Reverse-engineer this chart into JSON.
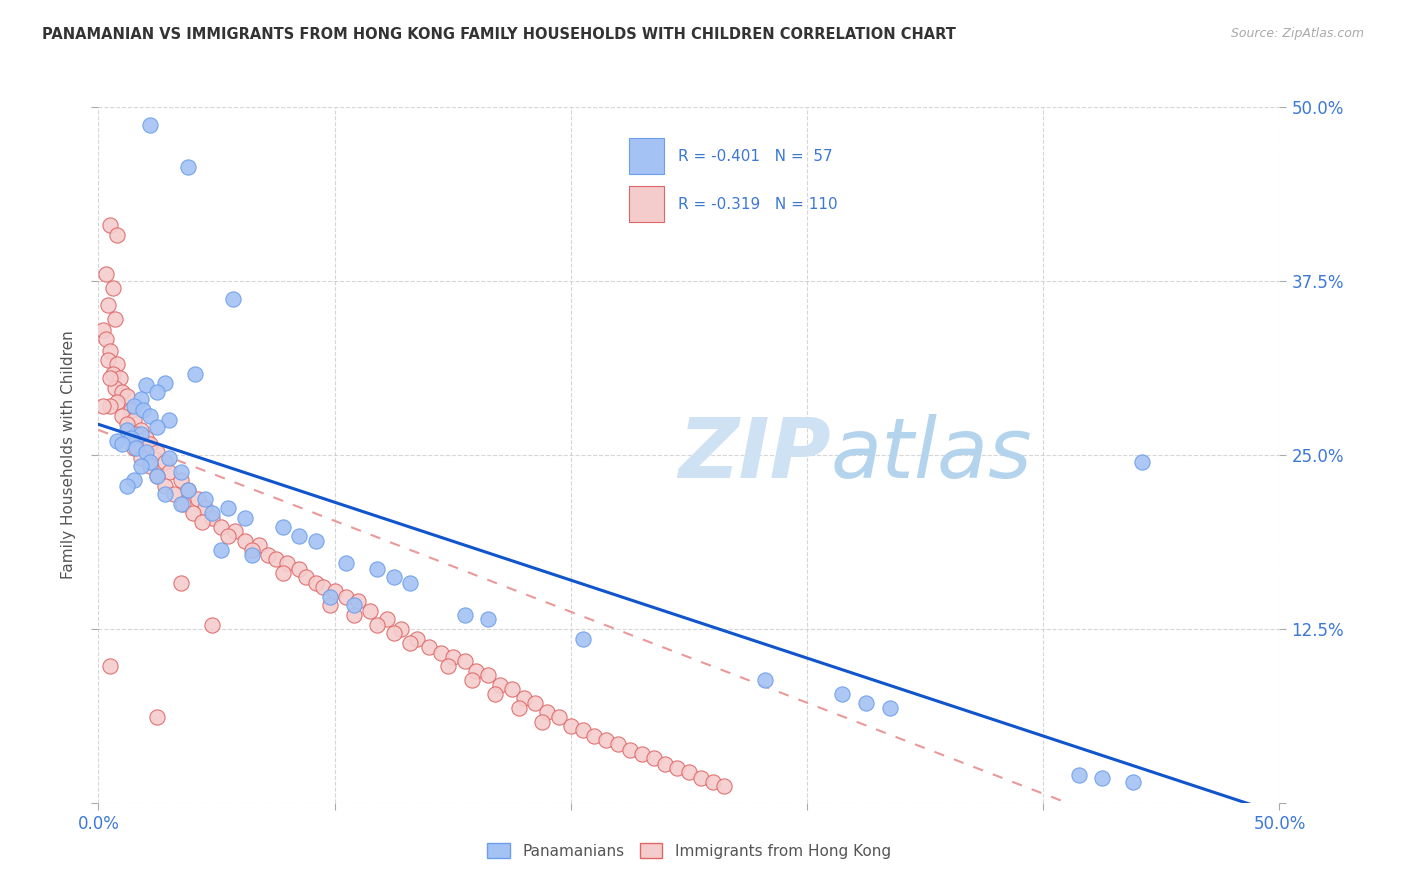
{
  "title": "PANAMANIAN VS IMMIGRANTS FROM HONG KONG FAMILY HOUSEHOLDS WITH CHILDREN CORRELATION CHART",
  "source": "Source: ZipAtlas.com",
  "ylabel": "Family Households with Children",
  "xlim": [
    0.0,
    0.5
  ],
  "ylim": [
    0.0,
    0.5
  ],
  "color_blue_fill": "#a4c2f4",
  "color_blue_edge": "#6d9eeb",
  "color_pink_fill": "#f4cccc",
  "color_pink_edge": "#e06666",
  "color_line_blue": "#1155cc",
  "color_line_pink": "#ea9999",
  "watermark_zip_color": "#c9daf8",
  "watermark_atlas_color": "#b7d0f7",
  "legend_label_1": "Panamanians",
  "legend_label_2": "Immigrants from Hong Kong",
  "blue_line_x": [
    0.0,
    0.5
  ],
  "blue_line_y": [
    0.272,
    -0.008
  ],
  "pink_line_x": [
    0.0,
    0.41
  ],
  "pink_line_y": [
    0.268,
    0.0
  ],
  "blue_scatter": [
    [
      0.022,
      0.487
    ],
    [
      0.038,
      0.457
    ],
    [
      0.057,
      0.362
    ],
    [
      0.041,
      0.308
    ],
    [
      0.028,
      0.302
    ],
    [
      0.02,
      0.3
    ],
    [
      0.025,
      0.295
    ],
    [
      0.018,
      0.29
    ],
    [
      0.015,
      0.285
    ],
    [
      0.019,
      0.282
    ],
    [
      0.022,
      0.278
    ],
    [
      0.03,
      0.275
    ],
    [
      0.025,
      0.27
    ],
    [
      0.012,
      0.268
    ],
    [
      0.018,
      0.265
    ],
    [
      0.014,
      0.262
    ],
    [
      0.008,
      0.26
    ],
    [
      0.01,
      0.258
    ],
    [
      0.016,
      0.255
    ],
    [
      0.02,
      0.252
    ],
    [
      0.03,
      0.248
    ],
    [
      0.022,
      0.245
    ],
    [
      0.018,
      0.242
    ],
    [
      0.035,
      0.238
    ],
    [
      0.025,
      0.235
    ],
    [
      0.015,
      0.232
    ],
    [
      0.012,
      0.228
    ],
    [
      0.038,
      0.225
    ],
    [
      0.028,
      0.222
    ],
    [
      0.045,
      0.218
    ],
    [
      0.035,
      0.215
    ],
    [
      0.055,
      0.212
    ],
    [
      0.048,
      0.208
    ],
    [
      0.062,
      0.205
    ],
    [
      0.078,
      0.198
    ],
    [
      0.085,
      0.192
    ],
    [
      0.092,
      0.188
    ],
    [
      0.052,
      0.182
    ],
    [
      0.065,
      0.178
    ],
    [
      0.105,
      0.172
    ],
    [
      0.118,
      0.168
    ],
    [
      0.125,
      0.162
    ],
    [
      0.132,
      0.158
    ],
    [
      0.098,
      0.148
    ],
    [
      0.108,
      0.142
    ],
    [
      0.155,
      0.135
    ],
    [
      0.165,
      0.132
    ],
    [
      0.205,
      0.118
    ],
    [
      0.282,
      0.088
    ],
    [
      0.315,
      0.078
    ],
    [
      0.325,
      0.072
    ],
    [
      0.335,
      0.068
    ],
    [
      0.415,
      0.02
    ],
    [
      0.425,
      0.018
    ],
    [
      0.438,
      0.015
    ],
    [
      0.442,
      0.245
    ]
  ],
  "pink_scatter": [
    [
      0.005,
      0.415
    ],
    [
      0.008,
      0.408
    ],
    [
      0.003,
      0.38
    ],
    [
      0.006,
      0.37
    ],
    [
      0.004,
      0.358
    ],
    [
      0.007,
      0.348
    ],
    [
      0.002,
      0.34
    ],
    [
      0.003,
      0.333
    ],
    [
      0.005,
      0.325
    ],
    [
      0.004,
      0.318
    ],
    [
      0.008,
      0.315
    ],
    [
      0.006,
      0.308
    ],
    [
      0.009,
      0.305
    ],
    [
      0.007,
      0.298
    ],
    [
      0.01,
      0.295
    ],
    [
      0.012,
      0.292
    ],
    [
      0.008,
      0.288
    ],
    [
      0.005,
      0.285
    ],
    [
      0.014,
      0.282
    ],
    [
      0.01,
      0.278
    ],
    [
      0.015,
      0.275
    ],
    [
      0.012,
      0.272
    ],
    [
      0.018,
      0.268
    ],
    [
      0.016,
      0.265
    ],
    [
      0.02,
      0.262
    ],
    [
      0.022,
      0.258
    ],
    [
      0.015,
      0.255
    ],
    [
      0.025,
      0.252
    ],
    [
      0.018,
      0.248
    ],
    [
      0.028,
      0.245
    ],
    [
      0.022,
      0.242
    ],
    [
      0.03,
      0.238
    ],
    [
      0.025,
      0.235
    ],
    [
      0.035,
      0.232
    ],
    [
      0.028,
      0.228
    ],
    [
      0.038,
      0.225
    ],
    [
      0.032,
      0.222
    ],
    [
      0.042,
      0.218
    ],
    [
      0.036,
      0.215
    ],
    [
      0.045,
      0.212
    ],
    [
      0.04,
      0.208
    ],
    [
      0.048,
      0.205
    ],
    [
      0.044,
      0.202
    ],
    [
      0.052,
      0.198
    ],
    [
      0.058,
      0.195
    ],
    [
      0.055,
      0.192
    ],
    [
      0.062,
      0.188
    ],
    [
      0.068,
      0.185
    ],
    [
      0.065,
      0.182
    ],
    [
      0.072,
      0.178
    ],
    [
      0.075,
      0.175
    ],
    [
      0.08,
      0.172
    ],
    [
      0.085,
      0.168
    ],
    [
      0.078,
      0.165
    ],
    [
      0.088,
      0.162
    ],
    [
      0.092,
      0.158
    ],
    [
      0.095,
      0.155
    ],
    [
      0.1,
      0.152
    ],
    [
      0.105,
      0.148
    ],
    [
      0.11,
      0.145
    ],
    [
      0.098,
      0.142
    ],
    [
      0.115,
      0.138
    ],
    [
      0.108,
      0.135
    ],
    [
      0.122,
      0.132
    ],
    [
      0.118,
      0.128
    ],
    [
      0.128,
      0.125
    ],
    [
      0.125,
      0.122
    ],
    [
      0.135,
      0.118
    ],
    [
      0.132,
      0.115
    ],
    [
      0.14,
      0.112
    ],
    [
      0.145,
      0.108
    ],
    [
      0.15,
      0.105
    ],
    [
      0.155,
      0.102
    ],
    [
      0.148,
      0.098
    ],
    [
      0.16,
      0.095
    ],
    [
      0.165,
      0.092
    ],
    [
      0.158,
      0.088
    ],
    [
      0.17,
      0.085
    ],
    [
      0.175,
      0.082
    ],
    [
      0.168,
      0.078
    ],
    [
      0.18,
      0.075
    ],
    [
      0.185,
      0.072
    ],
    [
      0.178,
      0.068
    ],
    [
      0.19,
      0.065
    ],
    [
      0.195,
      0.062
    ],
    [
      0.188,
      0.058
    ],
    [
      0.2,
      0.055
    ],
    [
      0.205,
      0.052
    ],
    [
      0.21,
      0.048
    ],
    [
      0.215,
      0.045
    ],
    [
      0.22,
      0.042
    ],
    [
      0.225,
      0.038
    ],
    [
      0.23,
      0.035
    ],
    [
      0.235,
      0.032
    ],
    [
      0.24,
      0.028
    ],
    [
      0.245,
      0.025
    ],
    [
      0.25,
      0.022
    ],
    [
      0.255,
      0.018
    ],
    [
      0.26,
      0.015
    ],
    [
      0.265,
      0.012
    ],
    [
      0.005,
      0.098
    ],
    [
      0.025,
      0.062
    ],
    [
      0.048,
      0.128
    ],
    [
      0.035,
      0.158
    ],
    [
      0.005,
      0.305
    ],
    [
      0.002,
      0.285
    ]
  ]
}
